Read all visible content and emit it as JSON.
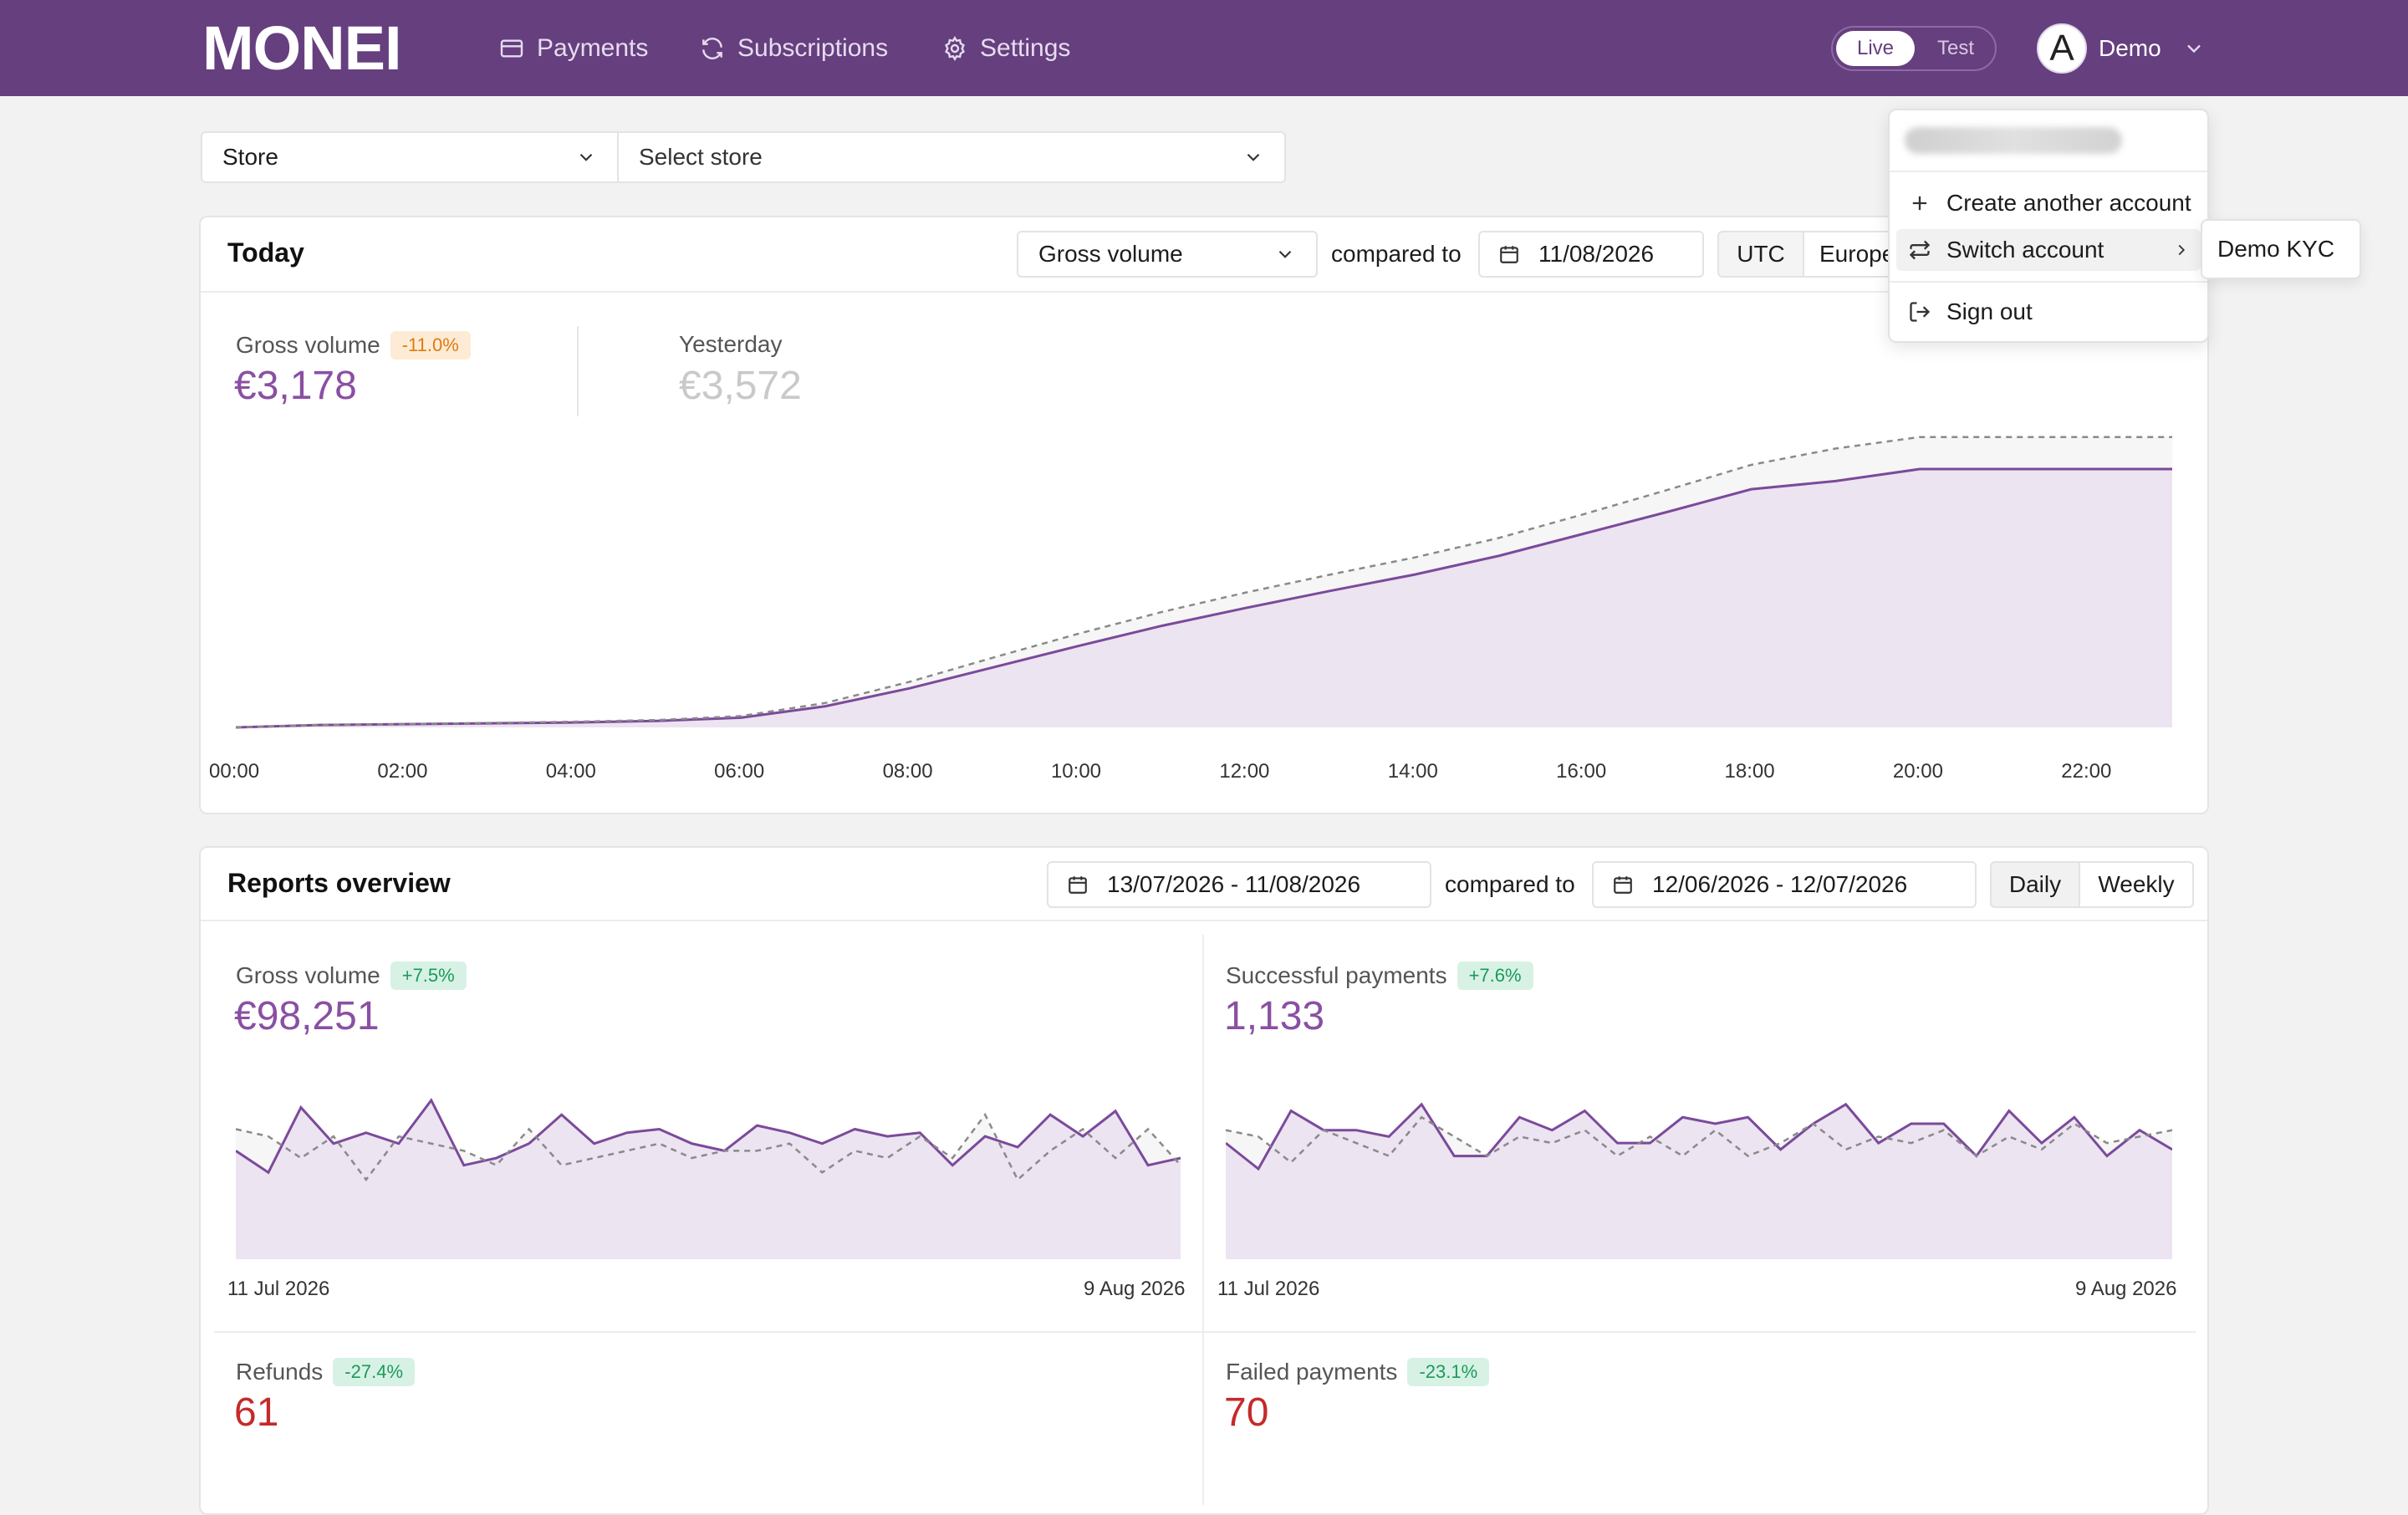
{
  "header": {
    "logo": "MONEI",
    "nav": [
      {
        "label": "Payments",
        "icon": "credit-card-icon"
      },
      {
        "label": "Subscriptions",
        "icon": "refresh-icon"
      },
      {
        "label": "Settings",
        "icon": "gear-icon"
      }
    ],
    "mode": {
      "live": "Live",
      "test": "Test",
      "selected": "Live"
    },
    "user": {
      "avatar_letter": "A",
      "name": "Demo"
    }
  },
  "filters": {
    "store_type": "Store",
    "store_placeholder": "Select store"
  },
  "today": {
    "title": "Today",
    "metric_select": "Gross volume",
    "compared_to": "compared to",
    "compare_date": "11/08/2026",
    "tz_utc": "UTC",
    "tz_europe": "Europe",
    "gross_label": "Gross volume",
    "gross_badge": "-11.0%",
    "gross_value": "€3,178",
    "yesterday_label": "Yesterday",
    "yesterday_value": "€3,572"
  },
  "chart_data": [
    {
      "type": "area",
      "x": [
        "00:00",
        "01:00",
        "02:00",
        "03:00",
        "04:00",
        "05:00",
        "06:00",
        "07:00",
        "08:00",
        "09:00",
        "10:00",
        "11:00",
        "12:00",
        "13:00",
        "14:00",
        "15:00",
        "16:00",
        "17:00",
        "18:00",
        "19:00",
        "20:00",
        "21:00",
        "22:00",
        "23:00"
      ],
      "tick_labels": [
        "00:00",
        "02:00",
        "04:00",
        "06:00",
        "08:00",
        "10:00",
        "12:00",
        "14:00",
        "16:00",
        "18:00",
        "20:00",
        "22:00"
      ],
      "series": [
        {
          "values": [
            0,
            30,
            40,
            50,
            60,
            80,
            120,
            260,
            480,
            740,
            1000,
            1250,
            1470,
            1680,
            1880,
            2110,
            2380,
            2650,
            2930,
            3030,
            3178,
            3178,
            3178,
            3178
          ],
          "style": "solid",
          "color": "#7b4a9b"
        },
        {
          "values": [
            0,
            30,
            40,
            55,
            70,
            90,
            140,
            300,
            560,
            860,
            1150,
            1420,
            1660,
            1880,
            2090,
            2330,
            2620,
            2920,
            3230,
            3430,
            3572,
            3572,
            3572,
            3572
          ],
          "style": "dashed",
          "color": "#8a8a8a"
        }
      ],
      "ylim": [
        0,
        3600
      ]
    },
    {
      "type": "line",
      "x_start": "11 Jul 2026",
      "x_end": "9 Aug 2026",
      "series": [
        {
          "values": [
            3300,
            3000,
            3900,
            3400,
            3550,
            3400,
            4000,
            3100,
            3200,
            3400,
            3800,
            3400,
            3550,
            3600,
            3400,
            3300,
            3650,
            3550,
            3400,
            3600,
            3500,
            3550,
            3100,
            3500,
            3350,
            3800,
            3500,
            3850,
            3100,
            3200
          ],
          "style": "solid",
          "color": "#7b4a9b"
        },
        {
          "values": [
            3600,
            3500,
            3200,
            3500,
            2900,
            3500,
            3400,
            3300,
            3100,
            3600,
            3100,
            3200,
            3300,
            3400,
            3200,
            3300,
            3300,
            3400,
            3000,
            3300,
            3200,
            3500,
            3200,
            3800,
            2900,
            3300,
            3600,
            3200,
            3600,
            3100
          ],
          "style": "dashed",
          "color": "#8a8a8a"
        }
      ],
      "ylim": [
        1800,
        4300
      ]
    },
    {
      "type": "line",
      "x_start": "11 Jul 2026",
      "x_end": "9 Aug 2026",
      "series": [
        {
          "values": [
            38,
            34,
            43,
            40,
            40,
            39,
            44,
            36,
            36,
            42,
            40,
            43,
            38,
            38,
            42,
            41,
            42,
            37,
            41,
            44,
            38,
            41,
            41,
            36,
            43,
            38,
            42,
            36,
            40,
            37
          ],
          "style": "solid",
          "color": "#7b4a9b"
        },
        {
          "values": [
            40,
            39,
            35,
            40,
            38,
            36,
            42,
            39,
            36,
            39,
            38,
            40,
            36,
            39,
            36,
            40,
            36,
            38,
            41,
            37,
            39,
            38,
            40,
            36,
            39,
            37,
            41,
            38,
            39,
            40
          ],
          "style": "dashed",
          "color": "#8a8a8a"
        }
      ],
      "ylim": [
        20,
        48
      ]
    }
  ],
  "reports": {
    "title": "Reports overview",
    "date_range": "13/07/2026 - 11/08/2026",
    "compared_to": "compared to",
    "compare_range": "12/06/2026 - 12/07/2026",
    "daily": "Daily",
    "weekly": "Weekly",
    "gross": {
      "label": "Gross volume",
      "badge": "+7.5%",
      "value": "€98,251",
      "x_start": "11 Jul 2026",
      "x_end": "9 Aug 2026"
    },
    "successful": {
      "label": "Successful payments",
      "badge": "+7.6%",
      "value": "1,133",
      "x_start": "11 Jul 2026",
      "x_end": "9 Aug 2026"
    },
    "refunds": {
      "label": "Refunds",
      "badge": "-27.4%",
      "value": "61"
    },
    "failed": {
      "label": "Failed payments",
      "badge": "-23.1%",
      "value": "70"
    }
  },
  "menu": {
    "create": "Create another account",
    "switch": "Switch account",
    "signout": "Sign out",
    "sub_account": "Demo KYC"
  }
}
